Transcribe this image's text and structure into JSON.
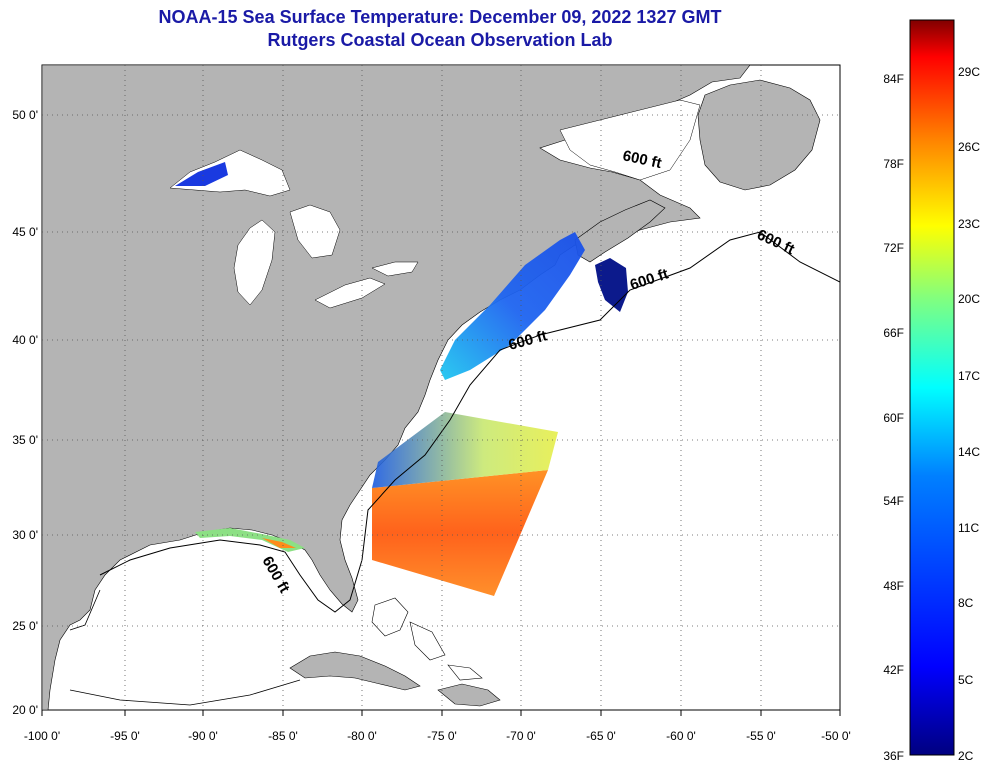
{
  "title": {
    "line1": "NOAA-15 Sea Surface Temperature:  December 09, 2022 1327 GMT",
    "line2": "Rutgers Coastal Ocean Observation Lab"
  },
  "map": {
    "lon_range": [
      -100,
      -50
    ],
    "lat_range": [
      20,
      52
    ],
    "lon_labels": [
      "-100 0'",
      "-95 0'",
      "-90 0'",
      "-85 0'",
      "-80 0'",
      "-75 0'",
      "-70 0'",
      "-65 0'",
      "-60 0'",
      "-55 0'",
      "-50 0'"
    ],
    "lat_labels": [
      "20 0'",
      "25 0'",
      "30 0'",
      "35 0'",
      "40 0'",
      "45 0'",
      "50 0'"
    ],
    "contour_labels": [
      "600 ft",
      "600 ft",
      "600 ft",
      "600 ft",
      "600 ft"
    ],
    "land_color": "#b4b4b4",
    "water_color": "#ffffff"
  },
  "colorbar": {
    "fahrenheit_labels": [
      "84F",
      "78F",
      "72F",
      "66F",
      "60F",
      "54F",
      "48F",
      "42F",
      "36F"
    ],
    "celsius_labels": [
      "29C",
      "26C",
      "23C",
      "20C",
      "17C",
      "14C",
      "11C",
      "8C",
      "5C",
      "2C"
    ],
    "colors_top_to_bottom": [
      "#800000",
      "#ff0000",
      "#ff8000",
      "#ffff00",
      "#80ff80",
      "#00ffff",
      "#0080ff",
      "#0000ff",
      "#000080"
    ]
  }
}
